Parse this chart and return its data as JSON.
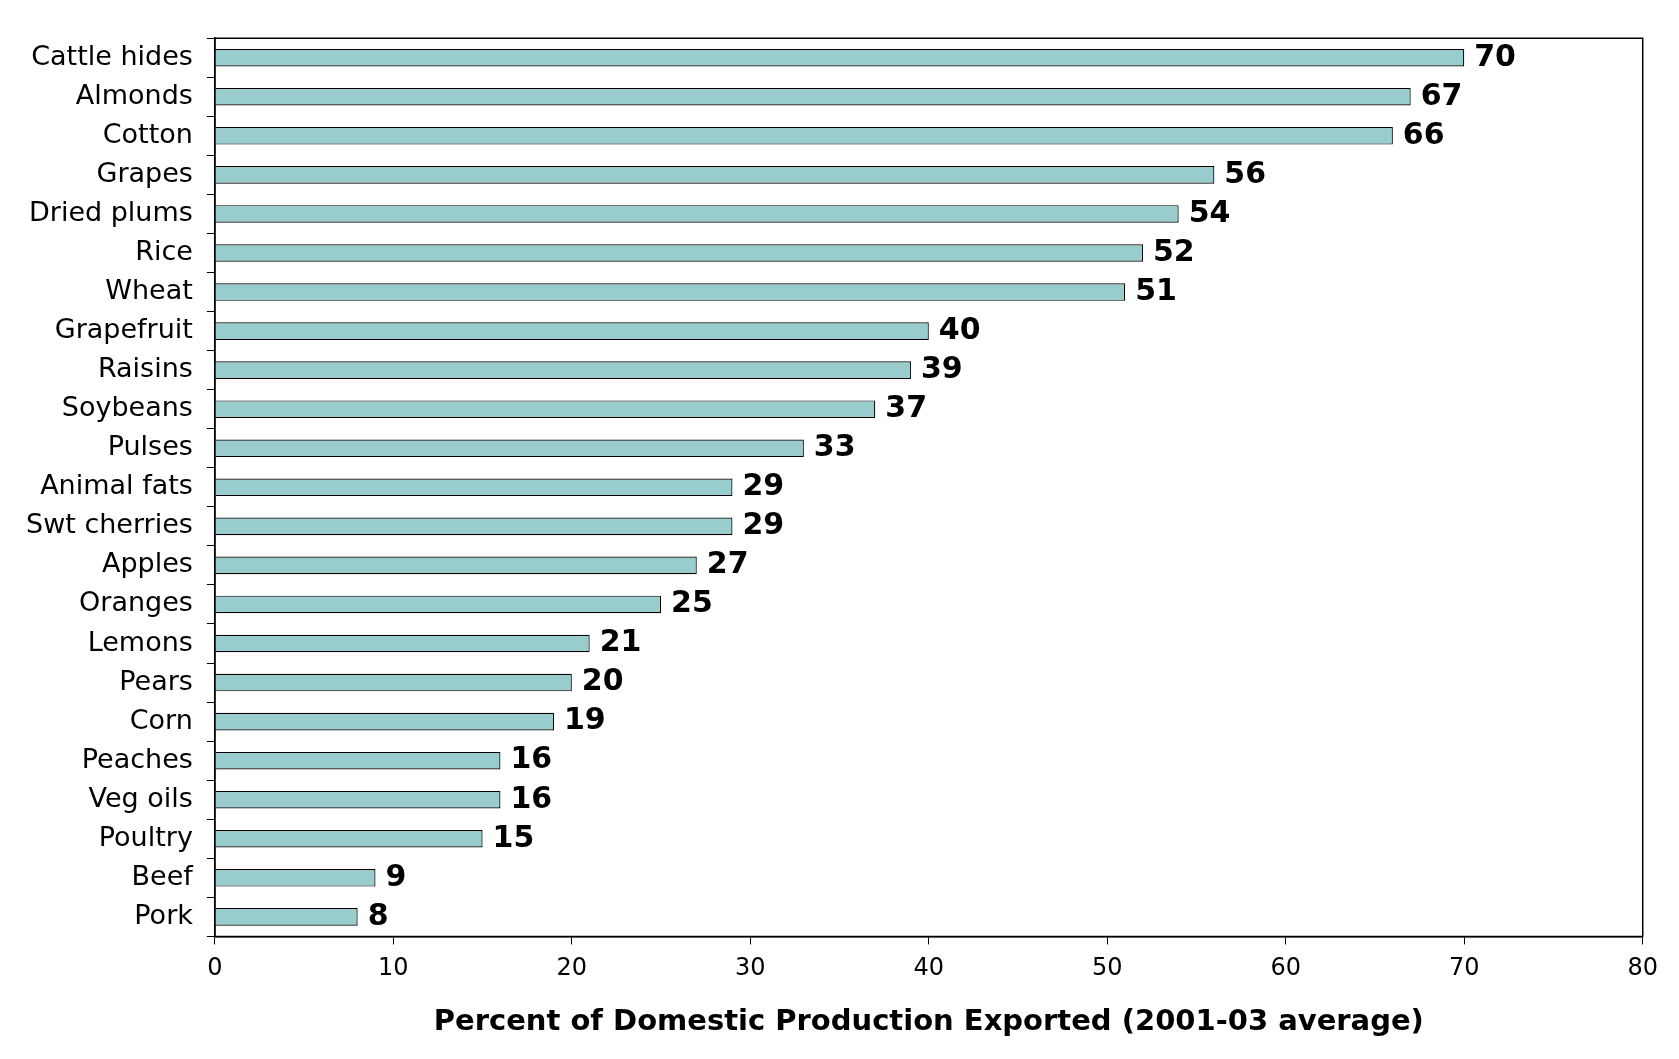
{
  "chart_data": {
    "type": "bar",
    "orientation": "horizontal",
    "xlabel": "Percent of Domestic Production Exported (2001-03 average)",
    "categories": [
      "Cattle hides",
      "Almonds",
      "Cotton",
      "Grapes",
      "Dried plums",
      "Rice",
      "Wheat",
      "Grapefruit",
      "Raisins",
      "Soybeans",
      "Pulses",
      "Animal fats",
      "Swt cherries",
      "Apples",
      "Oranges",
      "Lemons",
      "Pears",
      "Corn",
      "Peaches",
      "Veg oils",
      "Poultry",
      "Beef",
      "Pork"
    ],
    "values": [
      70,
      67,
      66,
      56,
      54,
      52,
      51,
      40,
      39,
      37,
      33,
      29,
      29,
      27,
      25,
      21,
      20,
      19,
      16,
      16,
      15,
      9,
      8
    ],
    "color": "#99cccc",
    "xlim": [
      0,
      80
    ],
    "xticks": [
      0,
      10,
      20,
      30,
      40,
      50,
      60,
      70,
      80
    ],
    "data_labels": true,
    "grid": false,
    "legend": false
  }
}
